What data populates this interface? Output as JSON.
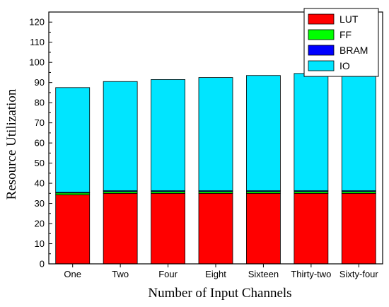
{
  "chart_data": {
    "type": "bar",
    "stacked": true,
    "categories": [
      "One",
      "Two",
      "Four",
      "Eight",
      "Sixteen",
      "Thirty-two",
      "Sixty-four"
    ],
    "series": [
      {
        "name": "LUT",
        "color": "#ff0000",
        "values": [
          34.3,
          35.0,
          35.0,
          35.0,
          35.0,
          35.0,
          35.0
        ]
      },
      {
        "name": "FF",
        "color": "#00ff00",
        "values": [
          0.9,
          0.9,
          0.9,
          0.9,
          0.9,
          0.9,
          0.9
        ]
      },
      {
        "name": "BRAM",
        "color": "#0000ff",
        "values": [
          0.3,
          0.4,
          0.4,
          0.4,
          0.4,
          0.4,
          0.4
        ]
      },
      {
        "name": "IO",
        "color": "#00e5ff",
        "values": [
          52.0,
          54.2,
          55.2,
          56.2,
          57.2,
          58.2,
          59.2
        ]
      }
    ],
    "xlabel": "Number of Input Channels",
    "ylabel": "Resource Utilization",
    "ylim": [
      0,
      125
    ],
    "yticks": [
      0,
      10,
      20,
      30,
      40,
      50,
      60,
      70,
      80,
      90,
      100,
      110,
      120
    ],
    "grid": false,
    "legend_position": "top-right"
  }
}
